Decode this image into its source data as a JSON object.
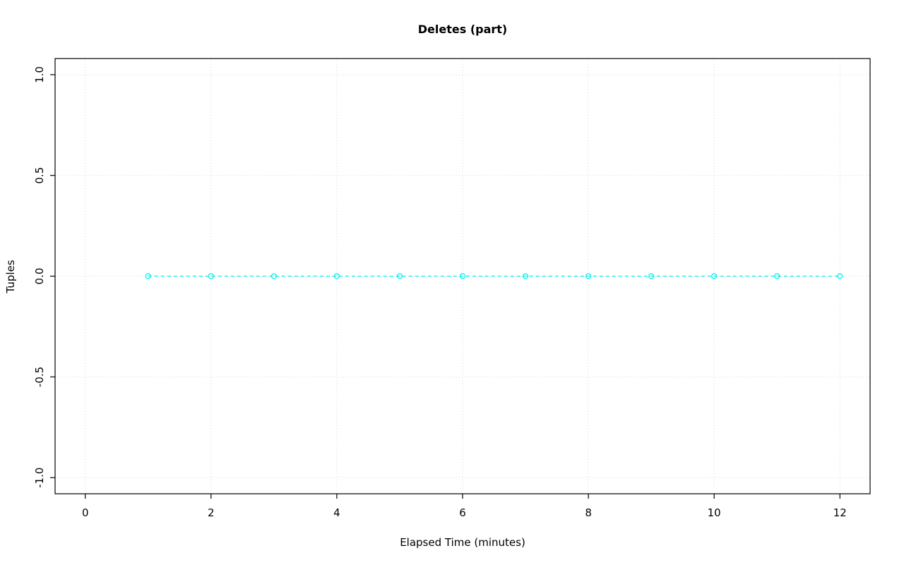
{
  "chart": {
    "title": "Deletes (part)",
    "xlabel": "Elapsed Time (minutes)",
    "ylabel": "Tuples"
  },
  "chart_data": {
    "type": "line",
    "title": "Deletes (part)",
    "xlabel": "Elapsed Time (minutes)",
    "ylabel": "Tuples",
    "x": [
      1,
      2,
      3,
      4,
      5,
      6,
      7,
      8,
      9,
      10,
      11,
      12
    ],
    "series": [
      {
        "name": "Deletes (part)",
        "values": [
          0,
          0,
          0,
          0,
          0,
          0,
          0,
          0,
          0,
          0,
          0,
          0
        ]
      }
    ],
    "x_ticks": [
      0,
      2,
      4,
      6,
      8,
      10,
      12
    ],
    "x_tick_labels": [
      "0",
      "2",
      "4",
      "6",
      "8",
      "10",
      "12"
    ],
    "y_ticks": [
      -1.0,
      -0.5,
      0.0,
      0.5,
      1.0
    ],
    "y_tick_labels": [
      "-1.0",
      "-0.5",
      "0.0",
      "0.5",
      "1.0"
    ],
    "xlim": [
      -0.48,
      12.48
    ],
    "ylim": [
      -1.08,
      1.08
    ],
    "grid": true,
    "legend_position": "none",
    "line_color": "#00EEEE",
    "line_style": "dashed",
    "marker": "open-circle",
    "grid_color": "#D6D6D6",
    "axis_color": "#000000",
    "background": "#FFFFFF"
  }
}
